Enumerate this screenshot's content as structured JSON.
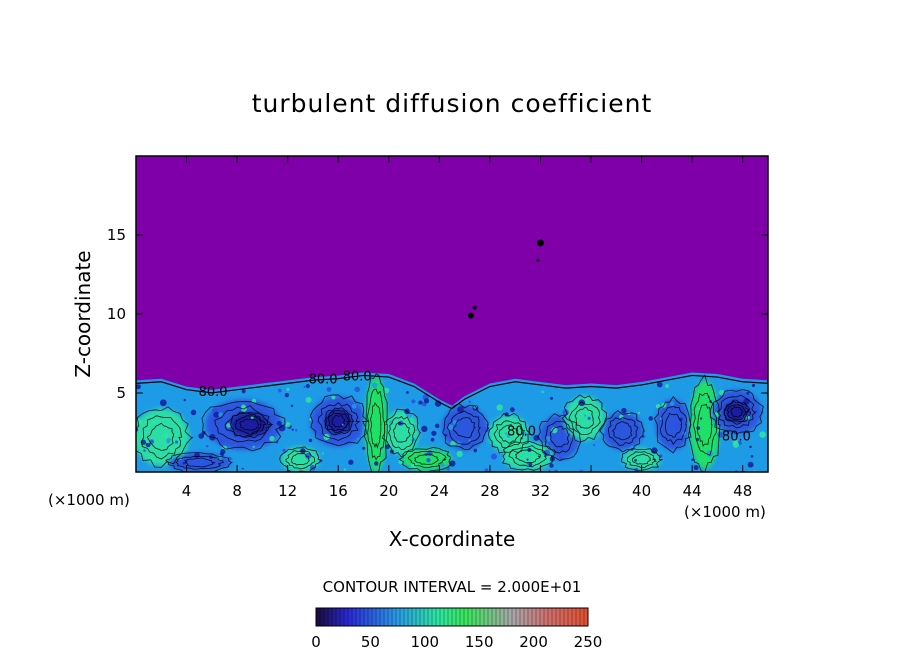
{
  "chart_data": {
    "type": "heatmap",
    "title": "turbulent diffusion coefficient",
    "xlabel": "X-coordinate",
    "ylabel": "Z-coordinate",
    "x_unit_left": "(×1000 m)",
    "x_unit_right": "(×1000 m)",
    "xlim": [
      0,
      50
    ],
    "ylim": [
      0,
      20
    ],
    "x_ticks": [
      4,
      8,
      12,
      16,
      20,
      24,
      28,
      32,
      36,
      40,
      44,
      48
    ],
    "y_ticks": [
      5,
      10,
      15
    ],
    "contour_interval_text": "CONTOUR INTERVAL = 2.000E+01",
    "contour_interval": 20,
    "contour_labels": [
      {
        "text": "80.0",
        "x": 6.1,
        "z": 4.8
      },
      {
        "text": "80.0",
        "x": 14.8,
        "z": 5.6
      },
      {
        "text": "80.0",
        "x": 17.5,
        "z": 5.8
      },
      {
        "text": "80.0",
        "x": 30.5,
        "z": 2.3
      },
      {
        "text": "80.0",
        "x": 47.5,
        "z": 2.0
      }
    ],
    "colorbar": {
      "ticks": [
        0,
        50,
        100,
        150,
        200,
        250
      ],
      "range": [
        0,
        250
      ]
    },
    "background_value": 0,
    "boundary_layer_top": [
      [
        0,
        5.8
      ],
      [
        2,
        5.9
      ],
      [
        4,
        5.4
      ],
      [
        6,
        5.2
      ],
      [
        8,
        5.4
      ],
      [
        10,
        5.6
      ],
      [
        12,
        5.8
      ],
      [
        14,
        6.0
      ],
      [
        16,
        6.1
      ],
      [
        18,
        6.3
      ],
      [
        20,
        6.2
      ],
      [
        22,
        5.6
      ],
      [
        24,
        4.6
      ],
      [
        25,
        4.2
      ],
      [
        26,
        4.8
      ],
      [
        28,
        5.6
      ],
      [
        30,
        5.9
      ],
      [
        32,
        5.7
      ],
      [
        34,
        5.5
      ],
      [
        36,
        5.6
      ],
      [
        38,
        5.5
      ],
      [
        40,
        5.7
      ],
      [
        42,
        6.0
      ],
      [
        44,
        6.3
      ],
      [
        46,
        6.2
      ],
      [
        48,
        5.9
      ],
      [
        50,
        5.8
      ]
    ],
    "colors": {
      "background": "#7f00a8",
      "low": "#1a1a9c",
      "mid_low": "#2b4fe0",
      "mid": "#1e9be6",
      "mid_high": "#2ee6a0",
      "high": "#1fe85a"
    }
  }
}
